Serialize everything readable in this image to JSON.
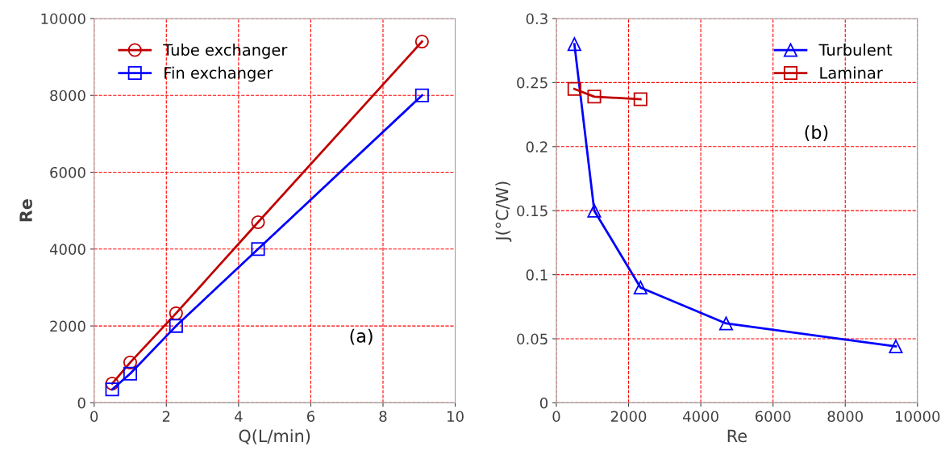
{
  "chart_data": [
    {
      "type": "line",
      "xlabel": "Q(L/min)",
      "ylabel": "Re",
      "xlim": [
        0,
        10
      ],
      "xticks": [
        0,
        2,
        4,
        6,
        8,
        10
      ],
      "ylim": [
        0,
        10000
      ],
      "yticks": [
        0,
        2000,
        4000,
        6000,
        8000,
        10000
      ],
      "grid": true,
      "legend": "top left",
      "annotations": [
        "(a)"
      ],
      "series": [
        {
          "name": "Tube exchanger",
          "color": "#c00000",
          "marker": "circle",
          "x": [
            0.5,
            1,
            2.27,
            4.54,
            9.08
          ],
          "values": [
            500,
            1050,
            2330,
            4700,
            9400
          ]
        },
        {
          "name": "Fin exchanger",
          "color": "#0000ff",
          "marker": "square",
          "x": [
            0.5,
            1,
            2.27,
            4.54,
            9.08
          ],
          "values": [
            350,
            760,
            2000,
            4000,
            8000
          ]
        }
      ]
    },
    {
      "type": "line",
      "xlabel": "Re",
      "ylabel": "J(°C/W)",
      "xlim": [
        0,
        10000
      ],
      "xticks": [
        0,
        2000,
        4000,
        6000,
        8000,
        10000
      ],
      "ylim": [
        0,
        0.3
      ],
      "yticks": [
        0,
        0.05,
        0.1,
        0.15,
        0.2,
        0.25,
        0.3
      ],
      "grid": true,
      "legend": "top right",
      "annotations": [
        "(b)"
      ],
      "series": [
        {
          "name": "Turbulent",
          "color": "#0000ff",
          "marker": "triangle",
          "x": [
            500,
            1050,
            2330,
            4700,
            9400
          ],
          "values": [
            0.28,
            0.15,
            0.09,
            0.062,
            0.044
          ]
        },
        {
          "name": "Laminar",
          "color": "#c00000",
          "marker": "square",
          "x": [
            500,
            1050,
            2330
          ],
          "values": [
            0.245,
            0.239,
            0.237
          ]
        }
      ]
    }
  ]
}
